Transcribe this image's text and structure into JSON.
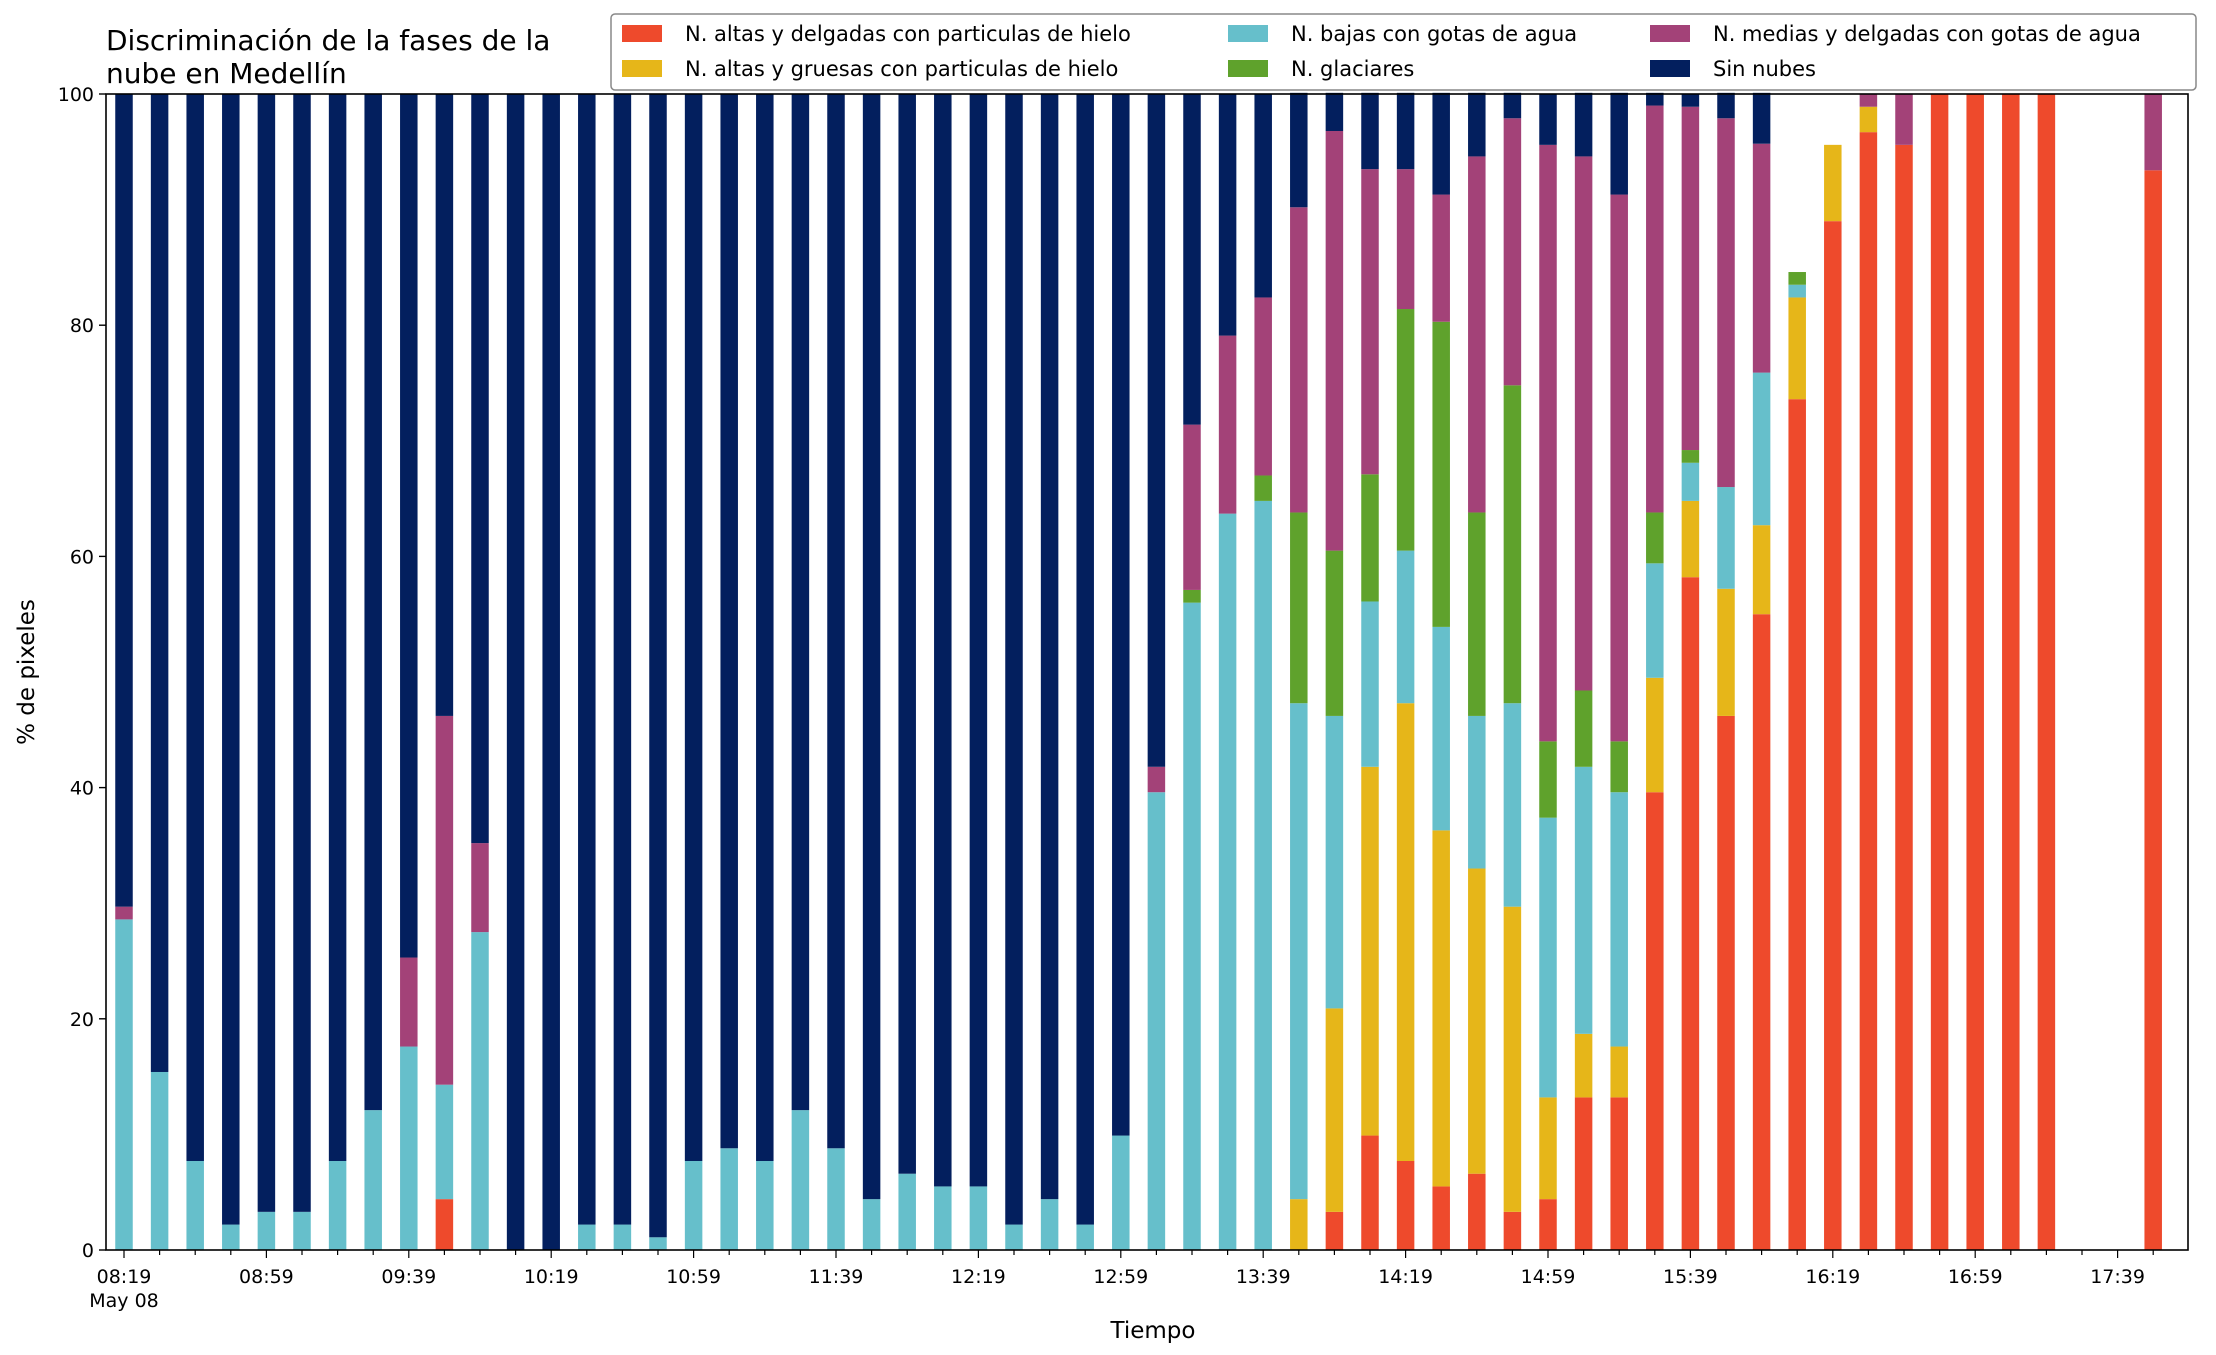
{
  "chart_data": {
    "type": "bar",
    "stacked": true,
    "title_lines": [
      "Discriminación de la fases de la",
      "nube en Medellín"
    ],
    "xlabel": "Tiempo",
    "ylabel": "% de pixeles",
    "ylim": [
      0,
      100
    ],
    "y_ticks": [
      "0",
      "20",
      "40",
      "60",
      "80",
      "100"
    ],
    "x_tick_labels": [
      "08:19",
      "08:59",
      "09:39",
      "10:19",
      "10:59",
      "11:39",
      "12:19",
      "12:59",
      "13:39",
      "14:19",
      "14:59",
      "15:39",
      "16:19",
      "16:59",
      "17:39"
    ],
    "x_date_label": "May 08",
    "grid": false,
    "legend_position": "top-right",
    "categories": [
      "08:19",
      "08:29",
      "08:39",
      "08:49",
      "08:59",
      "09:09",
      "09:19",
      "09:29",
      "09:39",
      "09:49",
      "09:59",
      "10:09",
      "10:19",
      "10:29",
      "10:39",
      "10:49",
      "10:59",
      "11:09",
      "11:19",
      "11:29",
      "11:39",
      "11:49",
      "11:59",
      "12:09",
      "12:19",
      "12:29",
      "12:39",
      "12:49",
      "12:59",
      "13:09",
      "13:19",
      "13:29",
      "13:39",
      "13:49",
      "13:59",
      "14:09",
      "14:19",
      "14:29",
      "14:39",
      "14:49",
      "14:59",
      "15:09",
      "15:19",
      "15:29",
      "15:39",
      "15:49",
      "15:59",
      "16:09",
      "16:19",
      "16:29",
      "16:39",
      "16:49",
      "16:59",
      "17:09",
      "17:19",
      "17:29",
      "17:39",
      "17:49"
    ],
    "series": [
      {
        "name": "N. altas y delgadas con particulas de hielo",
        "color": "#ee4a2c",
        "values": [
          0,
          0,
          0,
          0,
          0,
          0,
          0,
          0,
          0,
          4.4,
          0,
          0,
          0,
          0,
          0,
          0,
          0,
          0,
          0,
          0,
          0,
          0,
          0,
          0,
          0,
          0,
          0,
          0,
          0,
          0,
          0,
          0,
          0,
          0,
          3.3,
          9.9,
          7.7,
          5.5,
          6.6,
          3.3,
          4.4,
          13.2,
          13.2,
          39.6,
          58.2,
          46.2,
          55.0,
          73.6,
          89.0,
          96.7,
          95.6,
          100,
          100,
          100,
          100,
          0,
          0,
          93.4
        ]
      },
      {
        "name": "N. altas y gruesas con particulas de hielo",
        "color": "#e6b619",
        "values": [
          0,
          0,
          0,
          0,
          0,
          0,
          0,
          0,
          0,
          0,
          0,
          0,
          0,
          0,
          0,
          0,
          0,
          0,
          0,
          0,
          0,
          0,
          0,
          0,
          0,
          0,
          0,
          0,
          0,
          0,
          0,
          0,
          0,
          4.4,
          17.6,
          31.9,
          39.6,
          30.8,
          26.4,
          26.4,
          8.8,
          5.5,
          4.4,
          9.9,
          6.6,
          11.0,
          7.7,
          8.8,
          6.6,
          2.2,
          0,
          0,
          0,
          0,
          0,
          0,
          0,
          0
        ]
      },
      {
        "name": "N. bajas con gotas de agua",
        "color": "#66bfcb",
        "values": [
          28.6,
          15.4,
          7.7,
          2.2,
          3.3,
          3.3,
          7.7,
          12.1,
          17.6,
          9.9,
          27.5,
          0,
          0,
          2.2,
          2.2,
          1.1,
          7.7,
          8.8,
          7.7,
          12.1,
          8.8,
          4.4,
          6.6,
          5.5,
          5.5,
          2.2,
          4.4,
          2.2,
          9.9,
          39.6,
          56.0,
          63.7,
          64.8,
          42.9,
          25.3,
          14.3,
          13.2,
          17.6,
          13.2,
          17.6,
          24.2,
          23.1,
          22.0,
          9.9,
          3.3,
          8.8,
          13.2,
          1.1,
          0,
          0,
          0,
          0,
          0,
          0,
          0,
          0,
          0,
          0
        ]
      },
      {
        "name": "N. glaciares",
        "color": "#5fa22c",
        "values": [
          0,
          0,
          0,
          0,
          0,
          0,
          0,
          0,
          0,
          0,
          0,
          0,
          0,
          0,
          0,
          0,
          0,
          0,
          0,
          0,
          0,
          0,
          0,
          0,
          0,
          0,
          0,
          0,
          0,
          0,
          1.1,
          0,
          2.2,
          16.5,
          14.3,
          11.0,
          20.9,
          26.4,
          17.6,
          27.5,
          6.6,
          6.6,
          4.4,
          4.4,
          1.1,
          0,
          0,
          1.1,
          0,
          0,
          0,
          0,
          0,
          0,
          0,
          0,
          0,
          0
        ]
      },
      {
        "name": "N. medias y delgadas con gotas de agua",
        "color": "#a34278",
        "values": [
          1.1,
          0,
          0,
          0,
          0,
          0,
          0,
          0,
          7.7,
          31.9,
          7.7,
          0,
          0,
          0,
          0,
          0,
          0,
          0,
          0,
          0,
          0,
          0,
          0,
          0,
          0,
          0,
          0,
          0,
          0,
          2.2,
          14.3,
          15.4,
          15.4,
          26.4,
          36.3,
          26.4,
          12.1,
          11.0,
          30.8,
          23.1,
          51.6,
          46.2,
          47.3,
          35.2,
          29.7,
          31.9,
          19.8,
          0,
          0,
          1.1,
          4.4,
          0,
          0,
          0,
          0,
          0,
          0,
          6.6
        ]
      },
      {
        "name": "Sin nubes",
        "color": "#031f5e",
        "values": [
          70.3,
          84.6,
          92.3,
          97.8,
          96.7,
          96.7,
          92.3,
          87.9,
          74.7,
          53.8,
          64.8,
          100,
          100,
          97.8,
          97.8,
          98.9,
          92.3,
          91.2,
          92.3,
          87.9,
          91.2,
          95.6,
          93.4,
          94.5,
          94.5,
          97.8,
          95.6,
          97.8,
          90.1,
          58.2,
          28.6,
          20.9,
          17.6,
          9.9,
          3.3,
          6.6,
          6.6,
          8.8,
          5.5,
          2.2,
          4.4,
          5.5,
          8.8,
          1.1,
          1.1,
          2.2,
          4.4,
          0,
          0,
          0,
          0,
          0,
          0,
          0,
          0,
          0,
          0,
          0
        ]
      }
    ]
  }
}
